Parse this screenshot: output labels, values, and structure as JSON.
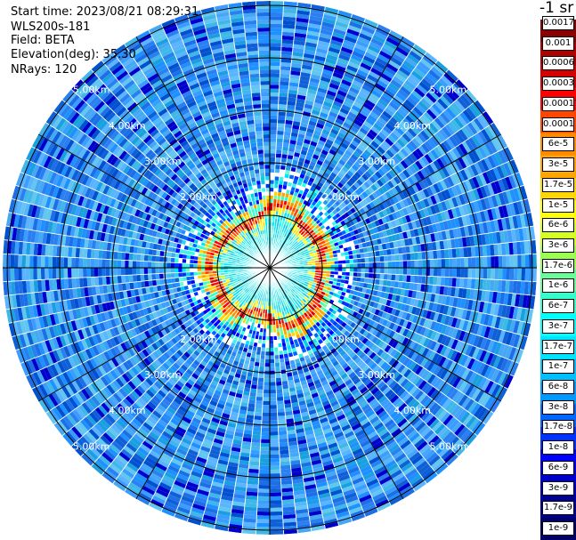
{
  "info": {
    "start_time": "Start time: 2023/08/21 08:29:31",
    "device": "WLS200s-181",
    "field": "Field: BETA",
    "elevation": "Elevation(deg): 35.30",
    "nrays": "NRays: 120"
  },
  "chart_data": {
    "type": "polar-ppi",
    "field": "BETA",
    "nrays": 120,
    "elevation_deg": 35.3,
    "range_rings": [
      "2.00km",
      "3.00km",
      "4.00km",
      "5.00km"
    ],
    "colorbar": {
      "title": "-1 sr",
      "ticks": [
        "0.0017",
        "0.001",
        "0.0006",
        "0.0003",
        "0.00017",
        "0.0001",
        "6e-5",
        "3e-5",
        "1.7e-5",
        "1e-5",
        "6e-6",
        "3e-6",
        "1.7e-6",
        "1e-6",
        "6e-7",
        "3e-7",
        "1.7e-7",
        "1e-7",
        "6e-8",
        "3e-8",
        "1.7e-8",
        "1e-8",
        "6e-9",
        "3e-9",
        "1.7e-9",
        "1e-9"
      ],
      "colors": [
        "#8b0000",
        "#b00000",
        "#d40000",
        "#ff0000",
        "#ff4500",
        "#ff8c00",
        "#ffa500",
        "#ffd700",
        "#ffff00",
        "#d4ff20",
        "#9aff50",
        "#66ff99",
        "#33ffcc",
        "#00ffff",
        "#00e5ff",
        "#00bfff",
        "#0099ff",
        "#0066ff",
        "#0033ff",
        "#0000ff",
        "#0000cc",
        "#000099",
        "#00006b"
      ]
    },
    "pattern": {
      "far_field": "blue to light-blue speckle",
      "near_core": "cyan/green",
      "core_ring": "yellow/orange/red at about 1 km",
      "center": "cyan"
    }
  }
}
